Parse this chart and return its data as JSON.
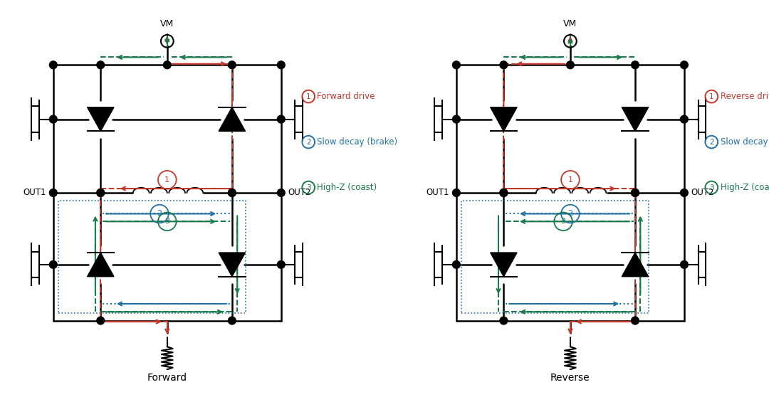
{
  "bg_color": "#ffffff",
  "color_forward": "#c0392b",
  "color_slow_decay": "#2471a3",
  "color_high_z": "#1a7a4a",
  "color_circuit": "#000000",
  "forward_label": "Forward",
  "reverse_label": "Reverse",
  "vm_label": "VM",
  "out1_label": "OUT1",
  "out2_label": "OUT2",
  "legend_1_forward": "Forward drive",
  "legend_1_reverse": "Reverse drive",
  "legend_2": "Slow decay (brake)",
  "legend_3": "High-Z (coast)"
}
